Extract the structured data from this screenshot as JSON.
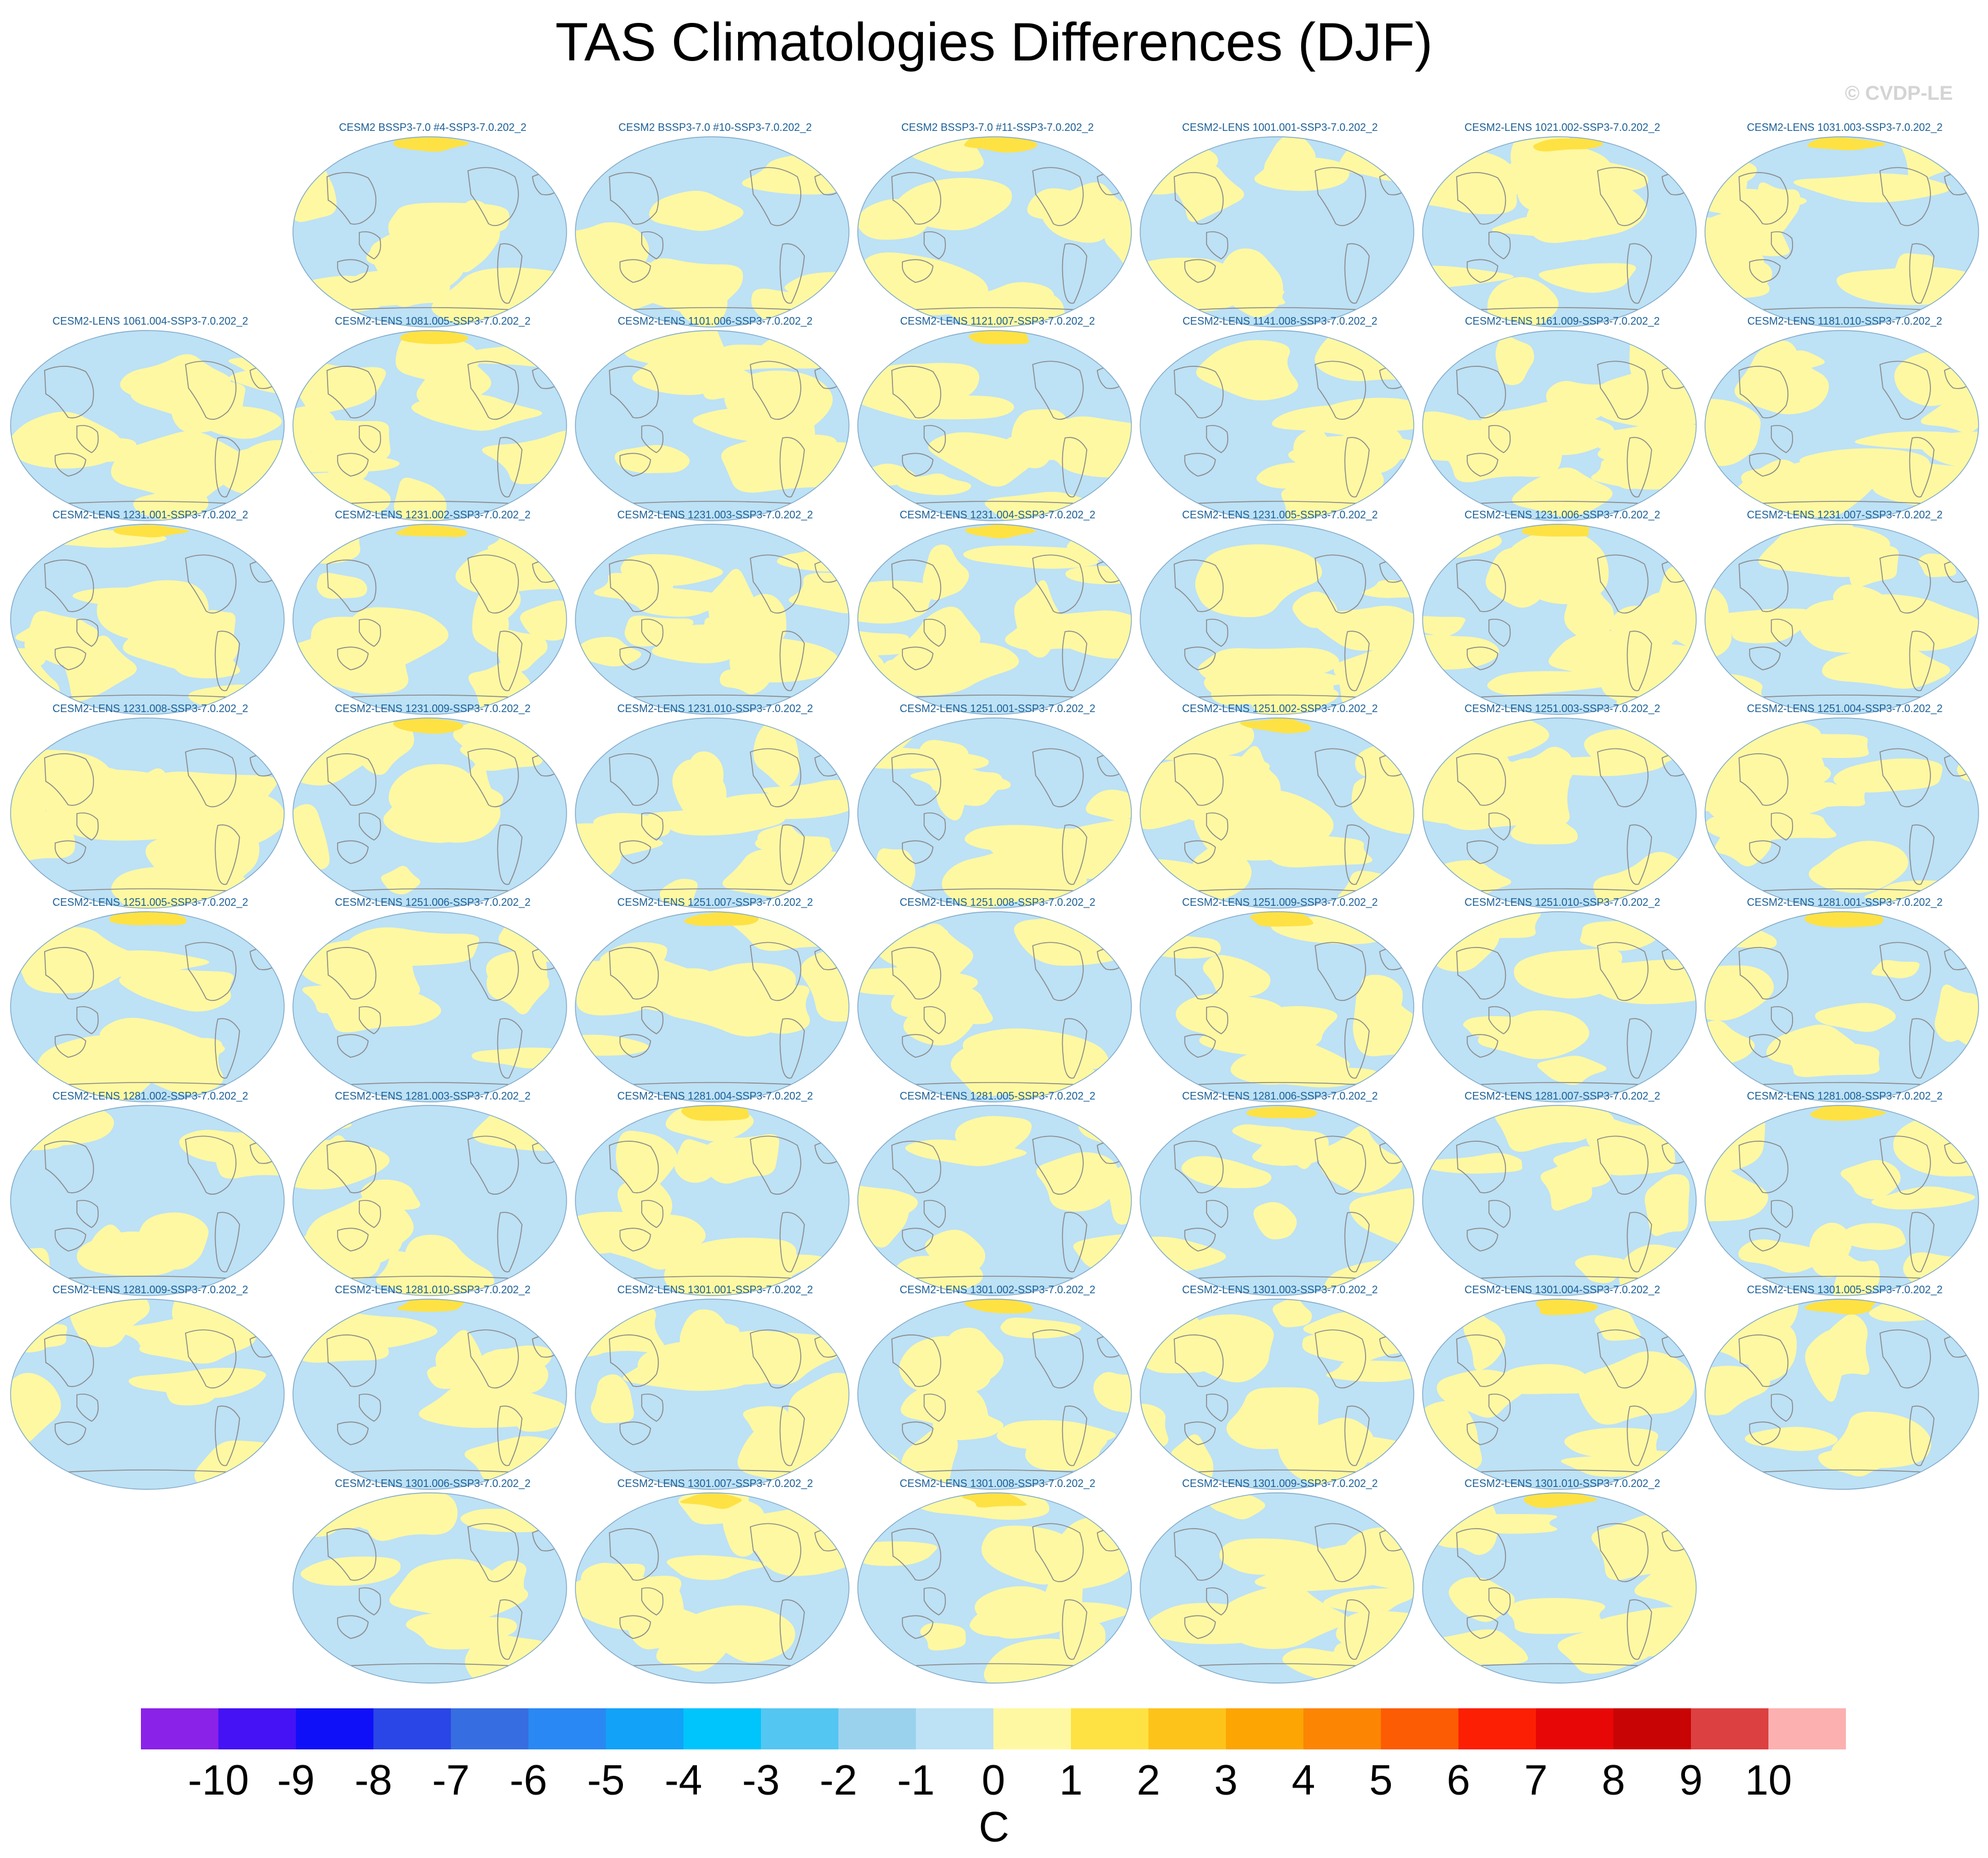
{
  "title": "TAS Climatologies Differences (DJF)",
  "watermark": "© CVDP-LE",
  "rows": [
    [
      "",
      "CESM2 BSSP3-7.0 #4-SSP3-7.0.202_2",
      "CESM2 BSSP3-7.0 #10-SSP3-7.0.202_2",
      "CESM2 BSSP3-7.0 #11-SSP3-7.0.202_2",
      "CESM2-LENS 1001.001-SSP3-7.0.202_2",
      "CESM2-LENS 1021.002-SSP3-7.0.202_2",
      "CESM2-LENS 1031.003-SSP3-7.0.202_2"
    ],
    [
      "CESM2-LENS 1061.004-SSP3-7.0.202_2",
      "CESM2-LENS 1081.005-SSP3-7.0.202_2",
      "CESM2-LENS 1101.006-SSP3-7.0.202_2",
      "CESM2-LENS 1121.007-SSP3-7.0.202_2",
      "CESM2-LENS 1141.008-SSP3-7.0.202_2",
      "CESM2-LENS 1161.009-SSP3-7.0.202_2",
      "CESM2-LENS 1181.010-SSP3-7.0.202_2"
    ],
    [
      "CESM2-LENS 1231.001-SSP3-7.0.202_2",
      "CESM2-LENS 1231.002-SSP3-7.0.202_2",
      "CESM2-LENS 1231.003-SSP3-7.0.202_2",
      "CESM2-LENS 1231.004-SSP3-7.0.202_2",
      "CESM2-LENS 1231.005-SSP3-7.0.202_2",
      "CESM2-LENS 1231.006-SSP3-7.0.202_2",
      "CESM2-LENS 1231.007-SSP3-7.0.202_2"
    ],
    [
      "CESM2-LENS 1231.008-SSP3-7.0.202_2",
      "CESM2-LENS 1231.009-SSP3-7.0.202_2",
      "CESM2-LENS 1231.010-SSP3-7.0.202_2",
      "CESM2-LENS 1251.001-SSP3-7.0.202_2",
      "CESM2-LENS 1251.002-SSP3-7.0.202_2",
      "CESM2-LENS 1251.003-SSP3-7.0.202_2",
      "CESM2-LENS 1251.004-SSP3-7.0.202_2"
    ],
    [
      "CESM2-LENS 1251.005-SSP3-7.0.202_2",
      "CESM2-LENS 1251.006-SSP3-7.0.202_2",
      "CESM2-LENS 1251.007-SSP3-7.0.202_2",
      "CESM2-LENS 1251.008-SSP3-7.0.202_2",
      "CESM2-LENS 1251.009-SSP3-7.0.202_2",
      "CESM2-LENS 1251.010-SSP3-7.0.202_2",
      "CESM2-LENS 1281.001-SSP3-7.0.202_2"
    ],
    [
      "CESM2-LENS 1281.002-SSP3-7.0.202_2",
      "CESM2-LENS 1281.003-SSP3-7.0.202_2",
      "CESM2-LENS 1281.004-SSP3-7.0.202_2",
      "CESM2-LENS 1281.005-SSP3-7.0.202_2",
      "CESM2-LENS 1281.006-SSP3-7.0.202_2",
      "CESM2-LENS 1281.007-SSP3-7.0.202_2",
      "CESM2-LENS 1281.008-SSP3-7.0.202_2"
    ],
    [
      "CESM2-LENS 1281.009-SSP3-7.0.202_2",
      "CESM2-LENS 1281.010-SSP3-7.0.202_2",
      "CESM2-LENS 1301.001-SSP3-7.0.202_2",
      "CESM2-LENS 1301.002-SSP3-7.0.202_2",
      "CESM2-LENS 1301.003-SSP3-7.0.202_2",
      "CESM2-LENS 1301.004-SSP3-7.0.202_2",
      "CESM2-LENS 1301.005-SSP3-7.0.202_2"
    ],
    [
      "",
      "CESM2-LENS 1301.006-SSP3-7.0.202_2",
      "CESM2-LENS 1301.007-SSP3-7.0.202_2",
      "CESM2-LENS 1301.008-SSP3-7.0.202_2",
      "CESM2-LENS 1301.009-SSP3-7.0.202_2",
      "CESM2-LENS 1301.010-SSP3-7.0.202_2",
      ""
    ]
  ],
  "colorbar": {
    "unit": "C",
    "tick_labels": [
      "-10",
      "-9",
      "-8",
      "-7",
      "-6",
      "-5",
      "-4",
      "-3",
      "-2",
      "-1",
      "0",
      "1",
      "2",
      "3",
      "4",
      "5",
      "6",
      "7",
      "8",
      "9",
      "10"
    ],
    "colors": [
      "#8a22e8",
      "#4412f4",
      "#1010f8",
      "#2a46e6",
      "#366ee2",
      "#2a88f4",
      "#12a2f8",
      "#00c4fc",
      "#54c6f2",
      "#9ad2ee",
      "#bde1f5",
      "#fff8a2",
      "#fee244",
      "#fdc31b",
      "#fca503",
      "#fc8503",
      "#fc5c03",
      "#fc1f03",
      "#e80707",
      "#c80404",
      "#dc4040",
      "#fdb0b0"
    ]
  },
  "map_colors": {
    "ocean_base": "#bde1f5",
    "warm": "#fff8a2",
    "warm_strong": "#fee244",
    "coast": "#8a8a8a"
  }
}
